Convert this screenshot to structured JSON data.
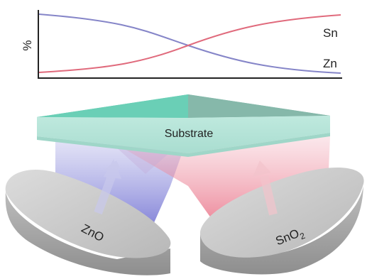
{
  "graph": {
    "ylabel": "%",
    "series": [
      {
        "name": "Sn",
        "color": "#8080c8",
        "trend": "decreasing"
      },
      {
        "name": "Zn",
        "color": "#e06878",
        "trend": "increasing"
      }
    ]
  },
  "substrate": {
    "label": "Substrate",
    "color": "#5fcbb0"
  },
  "targets": [
    {
      "label": "ZnO",
      "beam_color": "#7070d0"
    },
    {
      "label": "SnO",
      "subscript": "2",
      "beam_color": "#e86a80"
    }
  ]
}
